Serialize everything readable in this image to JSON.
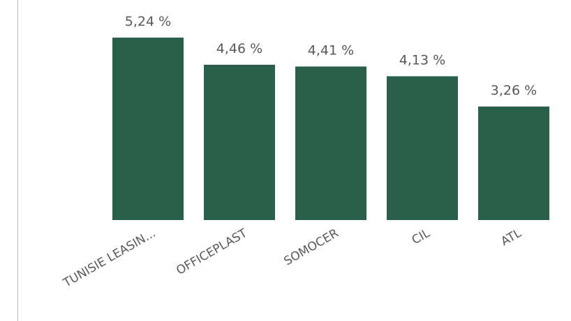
{
  "chart_data": {
    "type": "bar",
    "categories": [
      "TUNISIE LEASIN...",
      "OFFICEPLAST",
      "SOMOCER",
      "CIL",
      "ATL"
    ],
    "values": [
      5.24,
      4.46,
      4.41,
      4.13,
      3.26
    ],
    "data_labels": [
      "5,24 %",
      "4,46 %",
      "4,41 %",
      "4,13 %",
      "3,26 %"
    ],
    "title": "",
    "xlabel": "",
    "ylabel": "",
    "ylim": [
      0,
      5.24
    ],
    "grid": false,
    "legend": "none",
    "bar_color": "#2a6049",
    "axis_color": "#bfbfbf",
    "label_color": "#595959"
  }
}
